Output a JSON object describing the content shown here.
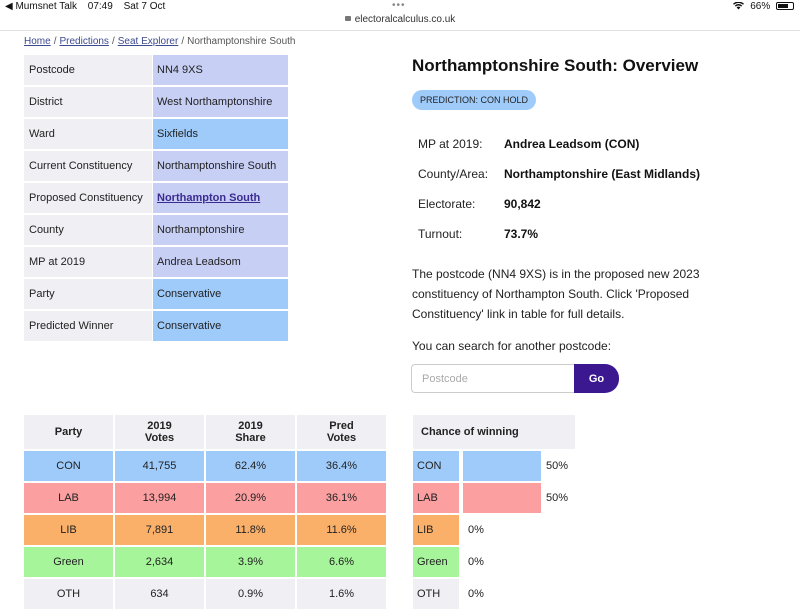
{
  "status_bar": {
    "back_app": "◀ Mumsnet Talk",
    "time": "07:49",
    "date": "Sat 7 Oct",
    "battery": "66%"
  },
  "url": "electoralcalculus.co.uk",
  "breadcrumb": {
    "items": [
      "Home",
      "Predictions",
      "Seat Explorer"
    ],
    "current": "Northamptonshire South"
  },
  "info_table": [
    {
      "key": "Postcode",
      "value": "NN4 9XS",
      "color": "#c7cff5"
    },
    {
      "key": "District",
      "value": "West Northamptonshire",
      "color": "#c7cff5"
    },
    {
      "key": "Ward",
      "value": "Sixfields",
      "color": "#9fcbfb"
    },
    {
      "key": "Current Constituency",
      "value": "Northamptonshire South",
      "color": "#c7cff5"
    },
    {
      "key": "Proposed Constituency",
      "value": "Northampton South",
      "color": "#c7cff5",
      "link": true
    },
    {
      "key": "County",
      "value": "Northamptonshire",
      "color": "#c7cff5"
    },
    {
      "key": "MP at 2019",
      "value": "Andrea Leadsom",
      "color": "#c7cff5"
    },
    {
      "key": "Party",
      "value": "Conservative",
      "color": "#9fcbfb"
    },
    {
      "key": "Predicted Winner",
      "value": "Conservative",
      "color": "#9fcbfb"
    }
  ],
  "overview": {
    "title": "Northamptonshire South: Overview",
    "prediction_badge": "PREDICTION: CON HOLD",
    "facts": [
      {
        "label": "MP at 2019:",
        "value": "Andrea Leadsom  (CON)"
      },
      {
        "label": "County/Area:",
        "value": "Northamptonshire (East Midlands)"
      },
      {
        "label": "Electorate:",
        "value": "90,842"
      },
      {
        "label": "Turnout:",
        "value": "73.7%"
      }
    ],
    "description": "The postcode (NN4 9XS) is in the proposed new 2023 constituency of Northampton South. Click 'Proposed Constituency' link in table for full details.",
    "search_label": "You can search for another postcode:",
    "search_placeholder": "Postcode",
    "go_label": "Go"
  },
  "votes_table": {
    "headers": [
      "Party",
      "2019\nVotes",
      "2019\nShare",
      "Pred\nVotes"
    ],
    "rows": [
      {
        "party": "CON",
        "votes": "41,755",
        "share": "62.4%",
        "pred": "36.4%",
        "color": "#9fcbfb"
      },
      {
        "party": "LAB",
        "votes": "13,994",
        "share": "20.9%",
        "pred": "36.1%",
        "color": "#fb9fa0"
      },
      {
        "party": "LIB",
        "votes": "7,891",
        "share": "11.8%",
        "pred": "11.6%",
        "color": "#fbb06a"
      },
      {
        "party": "Green",
        "votes": "2,634",
        "share": "3.9%",
        "pred": "6.6%",
        "color": "#a6f59a"
      },
      {
        "party": "OTH",
        "votes": "634",
        "share": "0.9%",
        "pred": "1.6%",
        "color": "#efeff4"
      }
    ]
  },
  "chance_table": {
    "header": "Chance of winning",
    "rows": [
      {
        "party": "CON",
        "pct": "50%",
        "value": 50,
        "color": "#9fcbfb"
      },
      {
        "party": "LAB",
        "pct": "50%",
        "value": 50,
        "color": "#fb9fa0"
      },
      {
        "party": "LIB",
        "pct": "0%",
        "value": 0,
        "color": "#fbb06a"
      },
      {
        "party": "Green",
        "pct": "0%",
        "value": 0,
        "color": "#a6f59a"
      },
      {
        "party": "OTH",
        "pct": "0%",
        "value": 0,
        "color": "#efeff4"
      }
    ]
  }
}
